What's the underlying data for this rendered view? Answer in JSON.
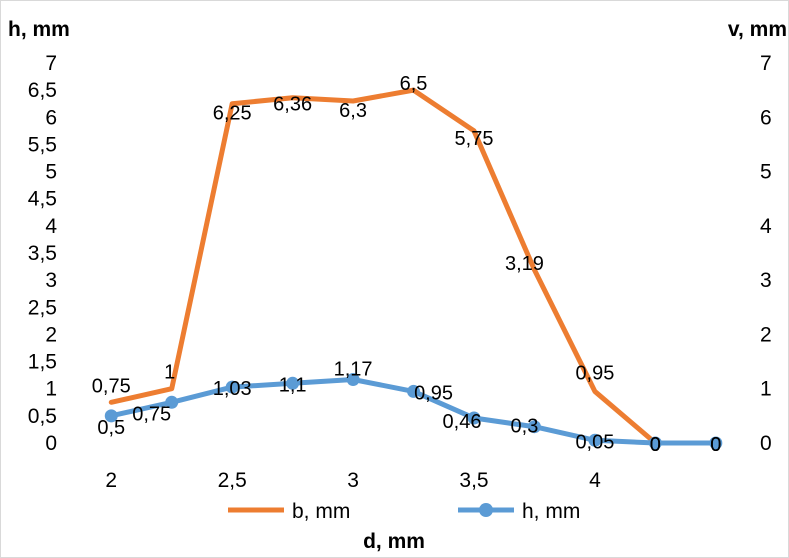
{
  "chart_data": {
    "type": "line",
    "title": "",
    "xlabel": "d, mm",
    "ylabel_left": "h, mm",
    "ylabel_right": "v, mm",
    "x": [
      2,
      2.25,
      2.5,
      2.75,
      3,
      3.25,
      3.5,
      3.75,
      4,
      4.25,
      4.5
    ],
    "x_ticks": [
      {
        "value": 2,
        "label": "2"
      },
      {
        "value": 2.5,
        "label": "2,5"
      },
      {
        "value": 3,
        "label": "3"
      },
      {
        "value": 3.5,
        "label": "3,5"
      },
      {
        "value": 4,
        "label": "4"
      }
    ],
    "xlim": [
      1.85,
      4.6
    ],
    "ylim_left": [
      0,
      7
    ],
    "ylim_right": [
      0,
      7
    ],
    "y_ticks_left": [
      "0",
      "0,5",
      "1",
      "1,5",
      "2",
      "2,5",
      "3",
      "3,5",
      "4",
      "4,5",
      "5",
      "5,5",
      "6",
      "6,5",
      "7"
    ],
    "y_ticks_right": [
      "0",
      "1",
      "2",
      "3",
      "4",
      "5",
      "6",
      "7"
    ],
    "grid": false,
    "legend_position": "bottom",
    "series": [
      {
        "name": "b, mm",
        "color": "#ed7d31",
        "marker": "none",
        "values": [
          0.75,
          1,
          6.25,
          6.36,
          6.3,
          6.5,
          5.75,
          3.19,
          0.95,
          0,
          0
        ],
        "labels": [
          "0,75",
          "1",
          "6,25",
          "6,36",
          "6,3",
          "6,5",
          "5,75",
          "3,19",
          "0,95",
          "0",
          "0"
        ]
      },
      {
        "name": "h, mm",
        "color": "#5b9bd5",
        "marker": "circle",
        "values": [
          0.5,
          0.75,
          1.03,
          1.1,
          1.17,
          0.95,
          0.46,
          0.3,
          0.05,
          0,
          0
        ],
        "labels": [
          "0,5",
          "0,75",
          "1,03",
          "1,1",
          "1,17",
          "0,95",
          "0,46",
          "0,3",
          "0,05",
          "0",
          "0"
        ]
      }
    ]
  }
}
